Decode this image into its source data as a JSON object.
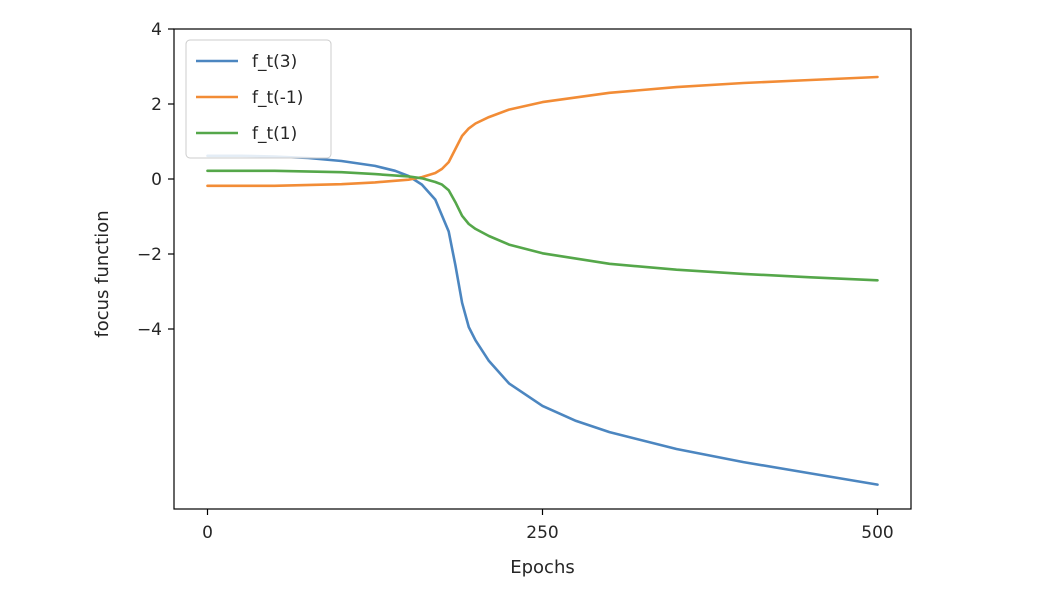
{
  "chart_data": {
    "type": "line",
    "title": "",
    "xlabel": "Epochs",
    "ylabel": "focus function",
    "xlim": [
      -25,
      525
    ],
    "ylim": [
      -8.8,
      4.0
    ],
    "xticks": [
      0,
      250,
      500
    ],
    "xtick_labels": [
      "0",
      "250",
      "500"
    ],
    "yticks": [
      4,
      2,
      0,
      -2,
      -4
    ],
    "ytick_labels": [
      "4",
      "2",
      "0",
      "−2",
      "−4"
    ],
    "grid": false,
    "legend_position": "top-left",
    "series": [
      {
        "name": "f_t(3)",
        "color": "#4c86c0",
        "x": [
          0,
          25,
          50,
          75,
          100,
          125,
          140,
          150,
          160,
          170,
          180,
          185,
          190,
          195,
          200,
          210,
          225,
          250,
          275,
          300,
          350,
          400,
          450,
          500
        ],
        "y": [
          0.62,
          0.62,
          0.6,
          0.56,
          0.48,
          0.35,
          0.22,
          0.08,
          -0.15,
          -0.55,
          -1.4,
          -2.3,
          -3.3,
          -3.95,
          -4.3,
          -4.85,
          -5.45,
          -6.05,
          -6.45,
          -6.75,
          -7.2,
          -7.55,
          -7.85,
          -8.15
        ]
      },
      {
        "name": "f_t(-1)",
        "color": "#f28c36",
        "x": [
          0,
          50,
          100,
          125,
          150,
          160,
          170,
          175,
          180,
          185,
          190,
          195,
          200,
          210,
          225,
          250,
          300,
          350,
          400,
          450,
          500
        ],
        "y": [
          -0.18,
          -0.18,
          -0.14,
          -0.09,
          -0.02,
          0.05,
          0.16,
          0.27,
          0.45,
          0.8,
          1.15,
          1.35,
          1.48,
          1.65,
          1.85,
          2.05,
          2.3,
          2.45,
          2.56,
          2.64,
          2.72
        ]
      },
      {
        "name": "f_t(1)",
        "color": "#55a74a",
        "x": [
          0,
          50,
          100,
          125,
          150,
          160,
          170,
          175,
          180,
          185,
          190,
          195,
          200,
          210,
          225,
          250,
          300,
          350,
          400,
          450,
          500
        ],
        "y": [
          0.22,
          0.22,
          0.18,
          0.13,
          0.07,
          0.02,
          -0.08,
          -0.15,
          -0.3,
          -0.62,
          -0.98,
          -1.2,
          -1.33,
          -1.52,
          -1.75,
          -1.98,
          -2.26,
          -2.42,
          -2.53,
          -2.62,
          -2.7
        ]
      }
    ]
  }
}
